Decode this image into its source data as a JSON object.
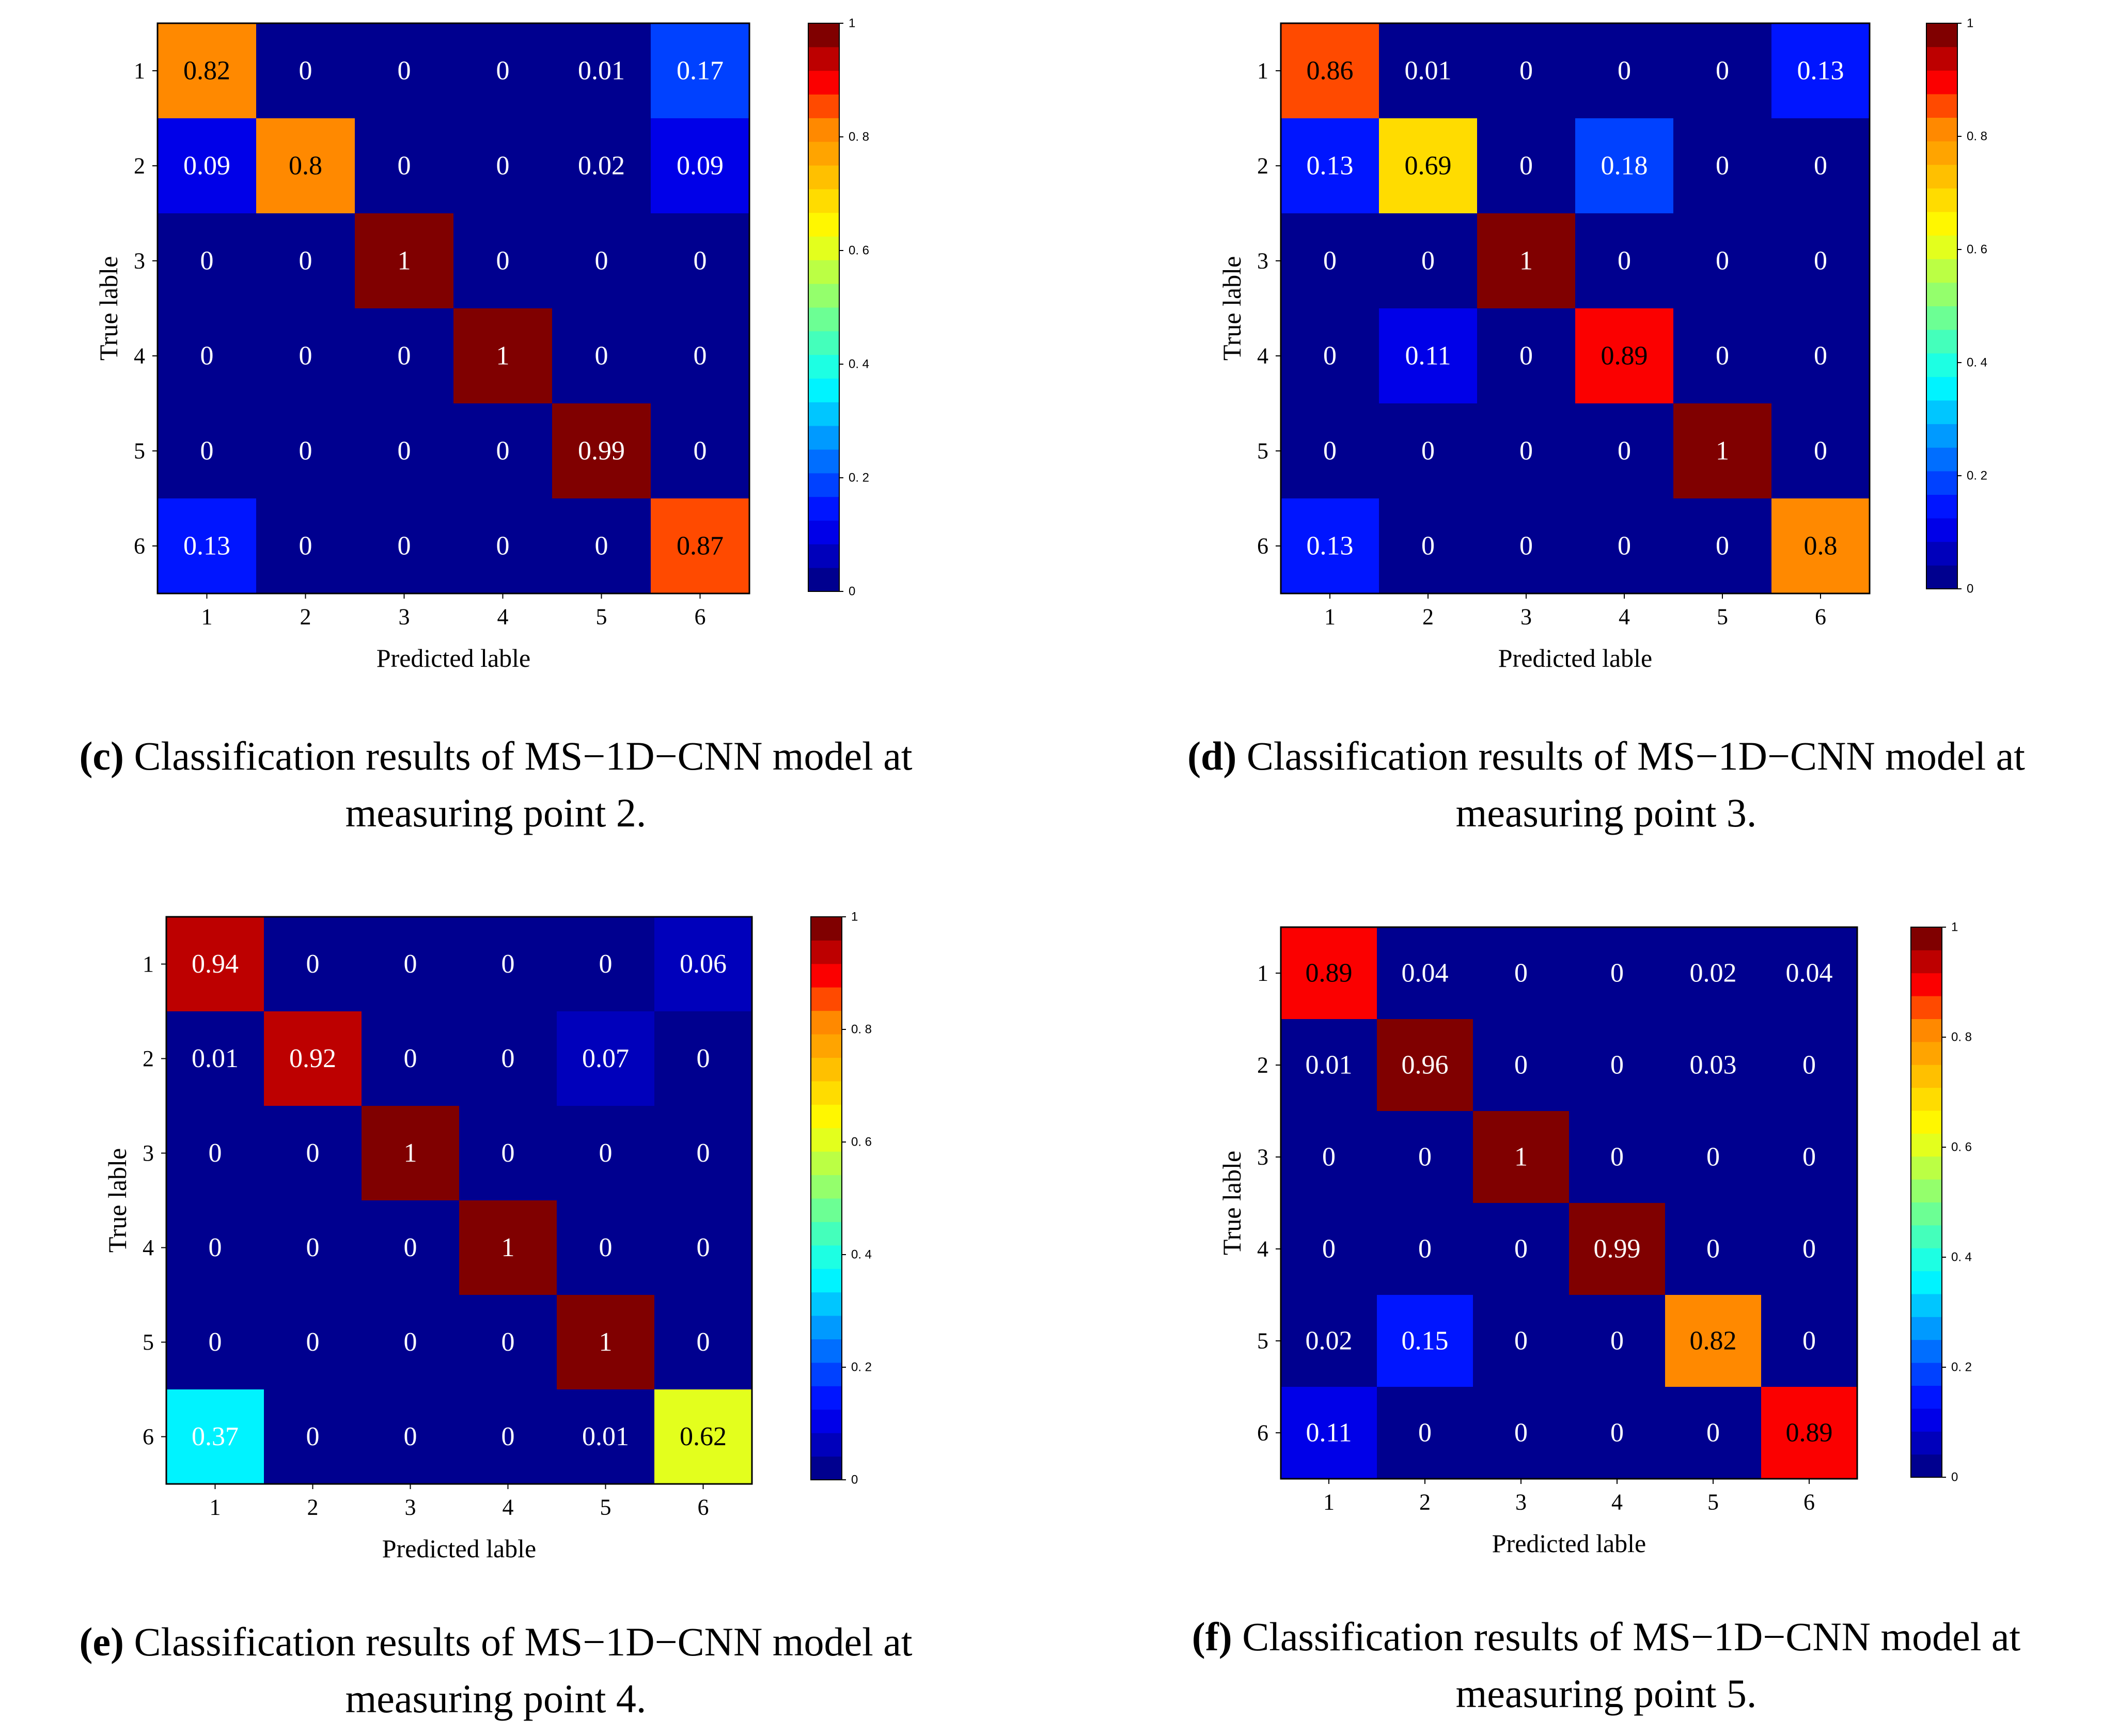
{
  "colors": {
    "background": "#ffffff",
    "cell_text_dark": "#000000",
    "cell_text_light": "#ffffff",
    "colormap": [
      "#00008f",
      "#0000ff",
      "#00ffff",
      "#80ff80",
      "#ffff00",
      "#ff8000",
      "#ff0000",
      "#800000"
    ]
  },
  "chart_data": [
    {
      "type": "heatmap",
      "panel": "c",
      "caption_letter": "(c)",
      "caption_line1": "Classification results of MS−1D−CNN model at",
      "caption_line2": "measuring point 2.",
      "xlabel": "Predicted lable",
      "ylabel": "True lable",
      "x_categories": [
        "1",
        "2",
        "3",
        "4",
        "5",
        "6"
      ],
      "y_categories": [
        "1",
        "2",
        "3",
        "4",
        "5",
        "6"
      ],
      "colorbar_ticks": [
        "0",
        "0.2",
        "0.4",
        "0.6",
        "0.8",
        "1"
      ],
      "value_range": [
        0,
        1
      ],
      "matrix": [
        [
          "0.82",
          "0",
          "0",
          "0",
          "0.01",
          "0.17"
        ],
        [
          "0.09",
          "0.8",
          "0",
          "0",
          "0.02",
          "0.09"
        ],
        [
          "0",
          "0",
          "1",
          "0",
          "0",
          "0"
        ],
        [
          "0",
          "0",
          "0",
          "1",
          "0",
          "0"
        ],
        [
          "0",
          "0",
          "0",
          "0",
          "0.99",
          "0"
        ],
        [
          "0.13",
          "0",
          "0",
          "0",
          "0",
          "0.87"
        ]
      ]
    },
    {
      "type": "heatmap",
      "panel": "d",
      "caption_letter": "(d)",
      "caption_line1": "Classification results of MS−1D−CNN model at",
      "caption_line2": "measuring point 3.",
      "xlabel": "Predicted lable",
      "ylabel": "True lable",
      "x_categories": [
        "1",
        "2",
        "3",
        "4",
        "5",
        "6"
      ],
      "y_categories": [
        "1",
        "2",
        "3",
        "4",
        "5",
        "6"
      ],
      "colorbar_ticks": [
        "0",
        "0.2",
        "0.4",
        "0.6",
        "0.8",
        "1"
      ],
      "value_range": [
        0,
        1
      ],
      "matrix": [
        [
          "0.86",
          "0.01",
          "0",
          "0",
          "0",
          "0.13"
        ],
        [
          "0.13",
          "0.69",
          "0",
          "0.18",
          "0",
          "0"
        ],
        [
          "0",
          "0",
          "1",
          "0",
          "0",
          "0"
        ],
        [
          "0",
          "0.11",
          "0",
          "0.89",
          "0",
          "0"
        ],
        [
          "0",
          "0",
          "0",
          "0",
          "1",
          "0"
        ],
        [
          "0.13",
          "0",
          "0",
          "0",
          "0",
          "0.8"
        ]
      ]
    },
    {
      "type": "heatmap",
      "panel": "e",
      "caption_letter": "(e)",
      "caption_line1": "Classification results of MS−1D−CNN model at",
      "caption_line2": "measuring point 4.",
      "xlabel": "Predicted lable",
      "ylabel": "True lable",
      "x_categories": [
        "1",
        "2",
        "3",
        "4",
        "5",
        "6"
      ],
      "y_categories": [
        "1",
        "2",
        "3",
        "4",
        "5",
        "6"
      ],
      "colorbar_ticks": [
        "0",
        "0.2",
        "0.4",
        "0.6",
        "0.8",
        "1"
      ],
      "value_range": [
        0,
        1
      ],
      "matrix": [
        [
          "0.94",
          "0",
          "0",
          "0",
          "0",
          "0.06"
        ],
        [
          "0.01",
          "0.92",
          "0",
          "0",
          "0.07",
          "0"
        ],
        [
          "0",
          "0",
          "1",
          "0",
          "0",
          "0"
        ],
        [
          "0",
          "0",
          "0",
          "1",
          "0",
          "0"
        ],
        [
          "0",
          "0",
          "0",
          "0",
          "1",
          "0"
        ],
        [
          "0.37",
          "0",
          "0",
          "0",
          "0.01",
          "0.62"
        ]
      ]
    },
    {
      "type": "heatmap",
      "panel": "f",
      "caption_letter": "(f)",
      "caption_line1": "Classification results of MS−1D−CNN model at",
      "caption_line2": "measuring point 5.",
      "xlabel": "Predicted lable",
      "ylabel": "True lable",
      "x_categories": [
        "1",
        "2",
        "3",
        "4",
        "5",
        "6"
      ],
      "y_categories": [
        "1",
        "2",
        "3",
        "4",
        "5",
        "6"
      ],
      "colorbar_ticks": [
        "0",
        "0.2",
        "0.4",
        "0.6",
        "0.8",
        "1"
      ],
      "value_range": [
        0,
        1
      ],
      "matrix": [
        [
          "0.89",
          "0.04",
          "0",
          "0",
          "0.02",
          "0.04"
        ],
        [
          "0.01",
          "0.96",
          "0",
          "0",
          "0.03",
          "0"
        ],
        [
          "0",
          "0",
          "1",
          "0",
          "0",
          "0"
        ],
        [
          "0",
          "0",
          "0",
          "0.99",
          "0",
          "0"
        ],
        [
          "0.02",
          "0.15",
          "0",
          "0",
          "0.82",
          "0"
        ],
        [
          "0.11",
          "0",
          "0",
          "0",
          "0",
          "0.89"
        ]
      ]
    }
  ]
}
